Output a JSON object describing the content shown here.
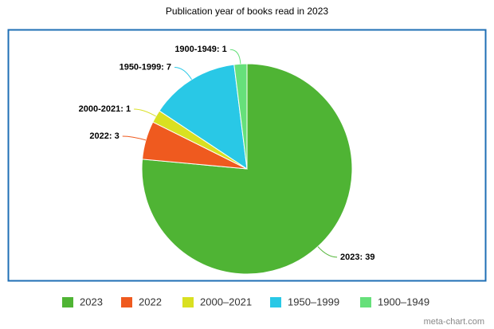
{
  "chart_data": {
    "type": "pie",
    "title": "Publication year of books read in 2023",
    "categories": [
      "2023",
      "2022",
      "2000–2021",
      "1950–1999",
      "1900–1949"
    ],
    "values": [
      39,
      3,
      1,
      7,
      1
    ],
    "value_labels": [
      "2023: 39",
      "2022: 3",
      "2000-2021: 1",
      "1950-1999: 7",
      "1900-1949: 1"
    ],
    "colors": [
      "#4fb434",
      "#ef5a1f",
      "#d9e021",
      "#29c8e6",
      "#66e07a"
    ],
    "legend": "bottom"
  },
  "footer": "meta-chart.com"
}
